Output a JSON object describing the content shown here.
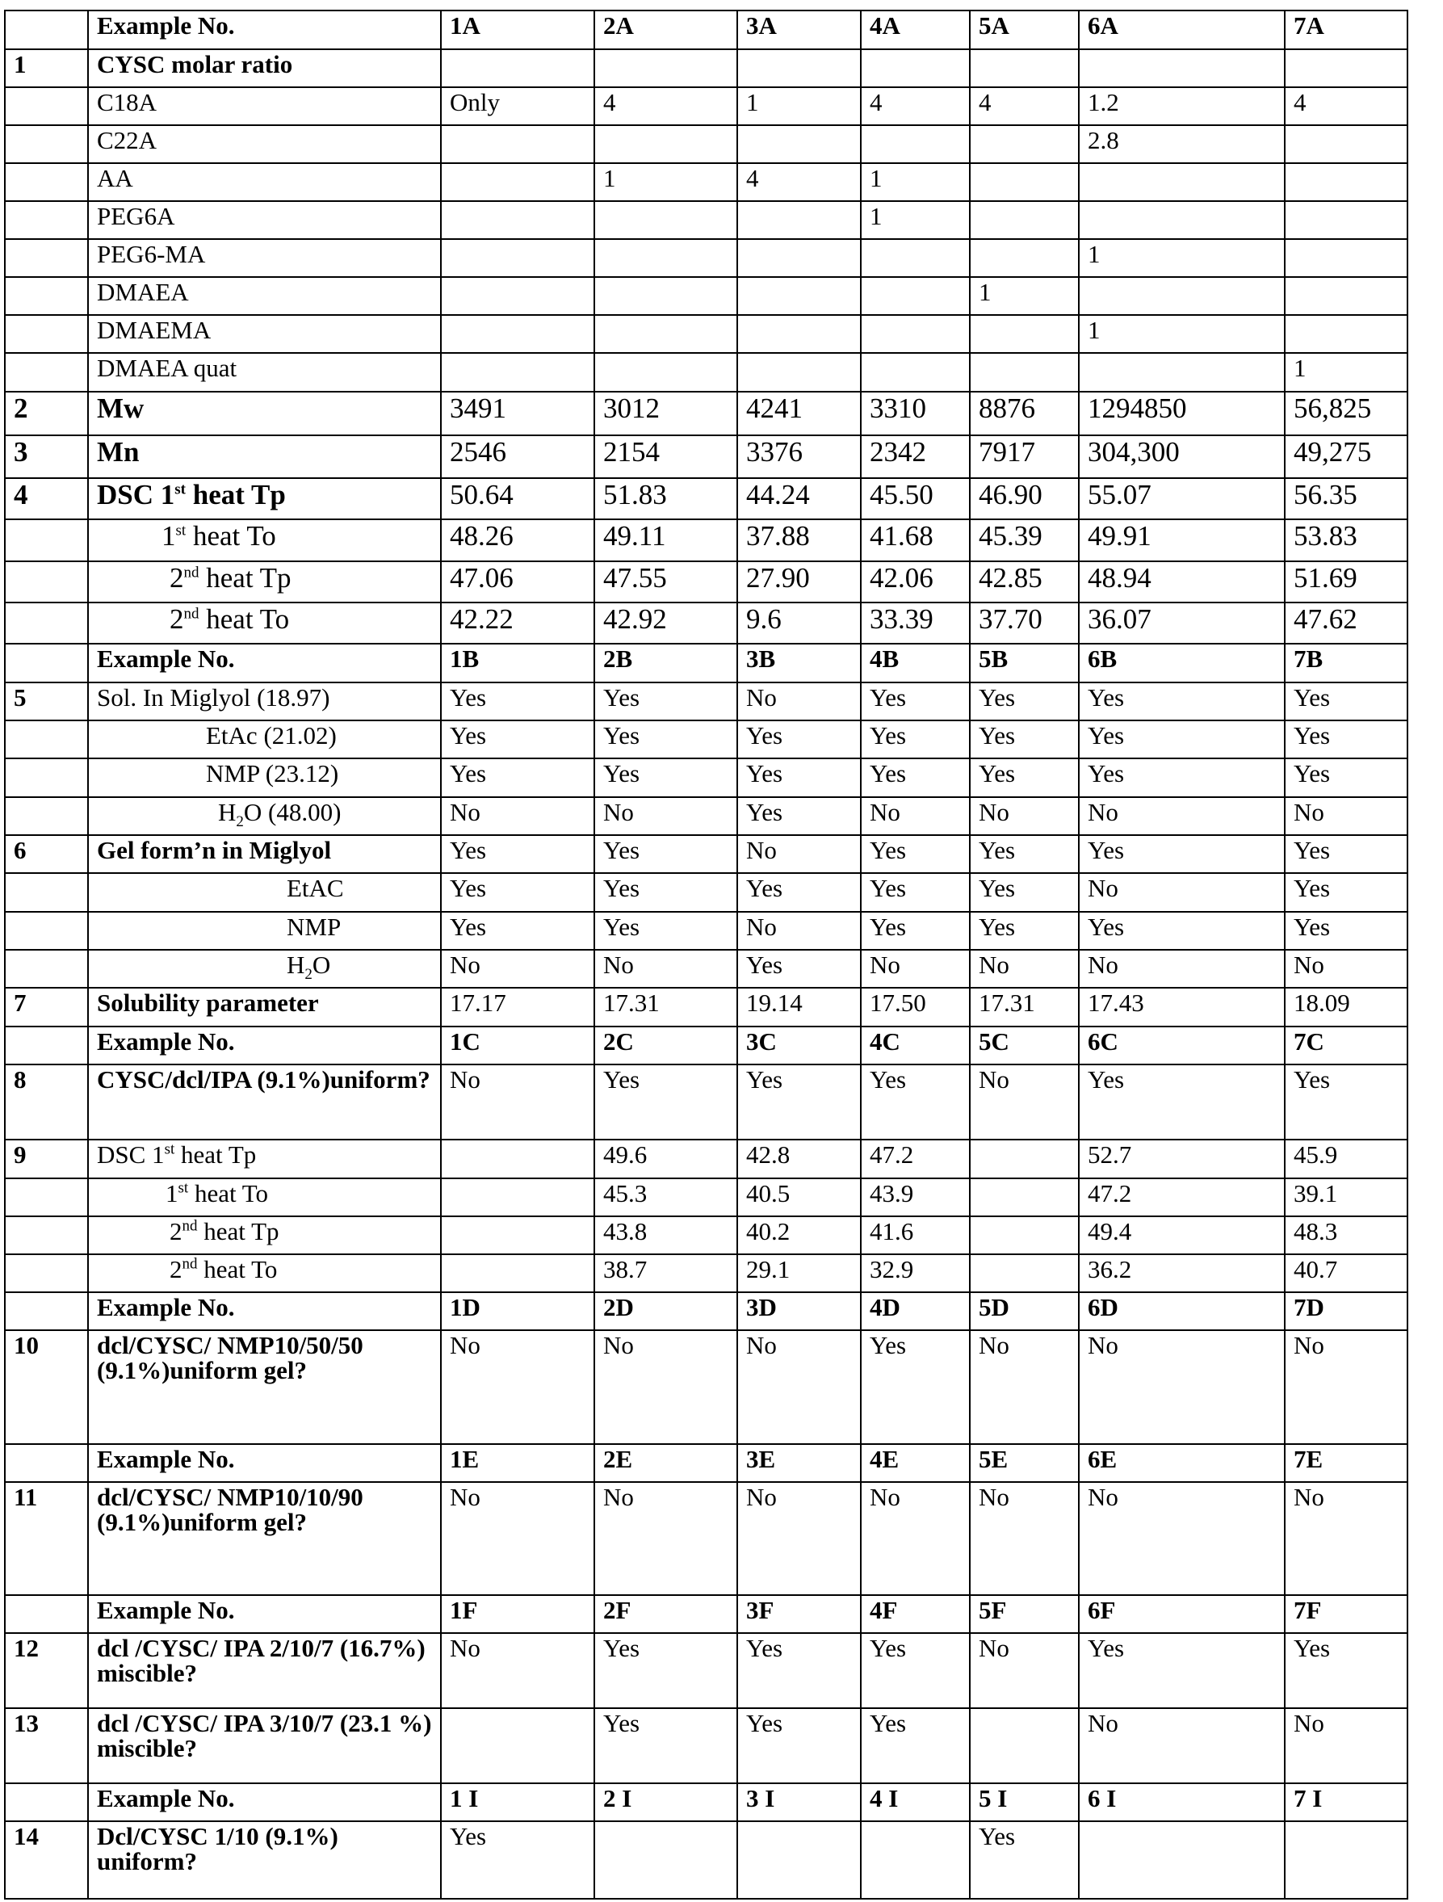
{
  "table": {
    "rows": [
      {
        "num": "",
        "label": "Example No.",
        "cells": [
          "1A",
          "2A",
          "3A",
          "4A",
          "5A",
          "6A",
          "7A"
        ]
      },
      {
        "num": "1",
        "label": "CYSC molar ratio",
        "cells": [
          "",
          "",
          "",
          "",
          "",
          "",
          ""
        ]
      },
      {
        "num": "",
        "label": "C18A",
        "cells": [
          "Only",
          "4",
          "1",
          "4",
          "4",
          "1.2",
          "4"
        ]
      },
      {
        "num": "",
        "label": "C22A",
        "cells": [
          "",
          "",
          "",
          "",
          "",
          "2.8",
          ""
        ]
      },
      {
        "num": "",
        "label": "AA",
        "cells": [
          "",
          "1",
          "4",
          "1",
          "",
          "",
          ""
        ]
      },
      {
        "num": "",
        "label": "PEG6A",
        "cells": [
          "",
          "",
          "",
          "1",
          "",
          "",
          ""
        ]
      },
      {
        "num": "",
        "label": "PEG6-MA",
        "cells": [
          "",
          "",
          "",
          "",
          "",
          "1",
          ""
        ]
      },
      {
        "num": "",
        "label": "DMAEA",
        "cells": [
          "",
          "",
          "",
          "",
          "1",
          "",
          ""
        ]
      },
      {
        "num": "",
        "label": "DMAEMA",
        "cells": [
          "",
          "",
          "",
          "",
          "",
          "1",
          ""
        ]
      },
      {
        "num": "",
        "label": "DMAEA quat",
        "cells": [
          "",
          "",
          "",
          "",
          "",
          "",
          "1"
        ]
      },
      {
        "num": "2",
        "label": "Mw",
        "cells": [
          "3491",
          "3012",
          "4241",
          "3310",
          "8876",
          "1294850",
          "56,825"
        ]
      },
      {
        "num": "3",
        "label": "Mn",
        "cells": [
          "2546",
          "2154",
          "3376",
          "2342",
          "7917",
          "304,300",
          "49,275"
        ]
      },
      {
        "num": "4",
        "label": "DSC 1",
        "sup": "st",
        "tail": " heat Tp",
        "cells": [
          "50.64",
          "51.83",
          "44.24",
          "45.50",
          "46.90",
          "55.07",
          "56.35"
        ]
      },
      {
        "num": "",
        "label": "1",
        "sup": "st",
        "tail": " heat To",
        "cells": [
          "48.26",
          "49.11",
          "37.88",
          "41.68",
          "45.39",
          "49.91",
          "53.83"
        ]
      },
      {
        "num": "",
        "label": "2",
        "sup": "nd",
        "tail": " heat Tp",
        "cells": [
          "47.06",
          "47.55",
          "27.90",
          "42.06",
          "42.85",
          "48.94",
          "51.69"
        ]
      },
      {
        "num": "",
        "label": "2",
        "sup": "nd",
        "tail": " heat To",
        "cells": [
          "42.22",
          "42.92",
          "9.6",
          "33.39",
          "37.70",
          "36.07",
          "47.62"
        ]
      },
      {
        "num": "",
        "label": "Example No.",
        "cells": [
          "1B",
          "2B",
          "3B",
          "4B",
          "5B",
          "6B",
          "7B"
        ]
      },
      {
        "num": "5",
        "label": "Sol. In Miglyol  (18.97)",
        "cells": [
          "Yes",
          "Yes",
          "No",
          "Yes",
          "Yes",
          "Yes",
          "Yes"
        ]
      },
      {
        "num": "",
        "label": "EtAc (21.02)",
        "cells": [
          "Yes",
          "Yes",
          "Yes",
          "Yes",
          "Yes",
          "Yes",
          "Yes"
        ]
      },
      {
        "num": "",
        "label": "NMP (23.12)",
        "cells": [
          "Yes",
          "Yes",
          "Yes",
          "Yes",
          "Yes",
          "Yes",
          "Yes"
        ]
      },
      {
        "num": "",
        "label": "H",
        "sub": "2",
        "tail": "O (48.00)",
        "cells": [
          "No",
          "No",
          "Yes",
          "No",
          "No",
          "No",
          "No"
        ]
      },
      {
        "num": "6",
        "label": "Gel form’n in Miglyol",
        "cells": [
          "Yes",
          "Yes",
          "No",
          "Yes",
          "Yes",
          "Yes",
          "Yes"
        ]
      },
      {
        "num": "",
        "label": "EtAC",
        "cells": [
          "Yes",
          "Yes",
          "Yes",
          "Yes",
          "Yes",
          "No",
          "Yes"
        ]
      },
      {
        "num": "",
        "label": "NMP",
        "cells": [
          "Yes",
          "Yes",
          "No",
          "Yes",
          "Yes",
          "Yes",
          "Yes"
        ]
      },
      {
        "num": "",
        "label": "H",
        "sub": "2",
        "tail": "O",
        "cells": [
          "No",
          "No",
          "Yes",
          "No",
          "No",
          "No",
          "No"
        ]
      },
      {
        "num": "7",
        "label": "Solubility parameter",
        "cells": [
          "17.17",
          "17.31",
          "19.14",
          "17.50",
          "17.31",
          "17.43",
          "18.09"
        ]
      },
      {
        "num": "",
        "label": "Example No.",
        "cells": [
          "1C",
          "2C",
          "3C",
          "4C",
          "5C",
          "6C",
          "7C"
        ]
      },
      {
        "num": "8",
        "label": "CYSC/dcl/IPA (9.1%)uniform?",
        "cells": [
          "No",
          "Yes",
          "Yes",
          "Yes",
          "No",
          "Yes",
          "Yes"
        ]
      },
      {
        "num": "9",
        "label": "DSC 1",
        "sup": "st",
        "tail": " heat Tp",
        "cells": [
          "",
          "49.6",
          "42.8",
          "47.2",
          "",
          "52.7",
          "45.9"
        ]
      },
      {
        "num": "",
        "label": "1",
        "sup": "st",
        "tail": " heat To",
        "cells": [
          "",
          "45.3",
          "40.5",
          "43.9",
          "",
          "47.2",
          "39.1"
        ]
      },
      {
        "num": "",
        "label": "2",
        "sup": "nd",
        "tail": " heat Tp",
        "cells": [
          "",
          "43.8",
          "40.2",
          "41.6",
          "",
          "49.4",
          "48.3"
        ]
      },
      {
        "num": "",
        "label": "2",
        "sup": "nd",
        "tail": " heat To",
        "cells": [
          "",
          "38.7",
          "29.1",
          "32.9",
          "",
          "36.2",
          "40.7"
        ]
      },
      {
        "num": "",
        "label": "Example No.",
        "cells": [
          "1D",
          "2D",
          "3D",
          "4D",
          "5D",
          "6D",
          "7D"
        ]
      },
      {
        "num": "10",
        "label": "dcl/CYSC/ NMP10/50/50 (9.1%)uniform gel?",
        "cells": [
          "No",
          "No",
          "No",
          "Yes",
          "No",
          "No",
          "No"
        ]
      },
      {
        "num": "",
        "label": "Example No.",
        "cells": [
          "1E",
          "2E",
          "3E",
          "4E",
          "5E",
          "6E",
          "7E"
        ]
      },
      {
        "num": "11",
        "label": "dcl/CYSC/ NMP10/10/90 (9.1%)uniform gel?",
        "cells": [
          "No",
          "No",
          "No",
          "No",
          "No",
          "No",
          "No"
        ]
      },
      {
        "num": "",
        "label": "Example No.",
        "cells": [
          "1F",
          "2F",
          "3F",
          "4F",
          "5F",
          "6F",
          "7F"
        ]
      },
      {
        "num": "12",
        "label": "dcl /CYSC/ IPA 2/10/7 (16.7%) miscible?",
        "cells": [
          "No",
          "Yes",
          "Yes",
          "Yes",
          "No",
          "Yes",
          "Yes"
        ]
      },
      {
        "num": "13",
        "label": "dcl /CYSC/ IPA 3/10/7 (23.1 %) miscible?",
        "cells": [
          "",
          "Yes",
          "Yes",
          "Yes",
          "",
          "No",
          "No"
        ]
      },
      {
        "num": "",
        "label": "Example No.",
        "cells": [
          "1 I",
          "2 I",
          "3 I",
          "4 I",
          "5 I",
          "6 I",
          "7 I"
        ]
      },
      {
        "num": "14",
        "label": "Dcl/CYSC 1/10 (9.1%) uniform?",
        "cells": [
          "Yes",
          "",
          "",
          "",
          "Yes",
          "",
          ""
        ]
      }
    ]
  }
}
